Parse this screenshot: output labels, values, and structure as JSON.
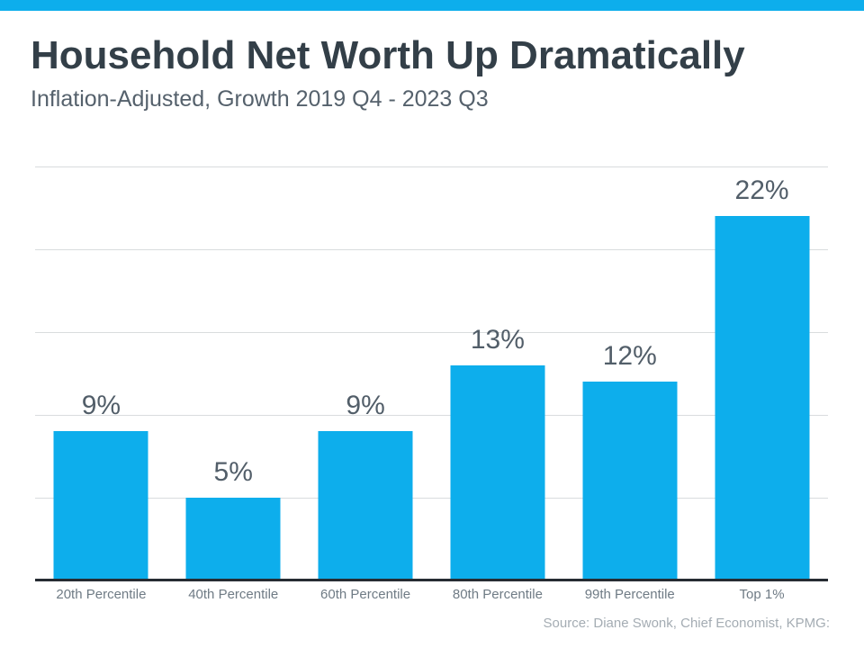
{
  "colors": {
    "accent": "#0daeec",
    "title": "#333f48",
    "subtitle": "#55616c",
    "value_label": "#525e69",
    "category_label": "#6f7b85",
    "source": "#a4acb3",
    "gridline": "#d9dcde",
    "axis": "#262c33",
    "background": "#ffffff"
  },
  "header": {
    "title": "Household Net Worth Up Dramatically",
    "subtitle": "Inflation-Adjusted, Growth 2019 Q4 - 2023 Q3"
  },
  "footer": {
    "source": "Source: Diane Swonk, Chief Economist, KPMG:"
  },
  "chart_data": {
    "type": "bar",
    "title": "Household Net Worth Up Dramatically",
    "subtitle": "Inflation-Adjusted, Growth 2019 Q4 - 2023 Q3",
    "categories": [
      "20th Percentile",
      "40th Percentile",
      "60th Percentile",
      "80th Percentile",
      "99th Percentile",
      "Top 1%"
    ],
    "values": [
      9,
      5,
      9,
      13,
      12,
      22
    ],
    "value_labels": [
      "9%",
      "5%",
      "9%",
      "13%",
      "12%",
      "22%"
    ],
    "xlabel": "",
    "ylabel": "",
    "ylim": [
      0,
      25
    ],
    "grid_step": 5,
    "grid": true,
    "legend": false,
    "bar_color": "#0daeec",
    "source": "Source: Diane Swonk, Chief Economist, KPMG:"
  }
}
